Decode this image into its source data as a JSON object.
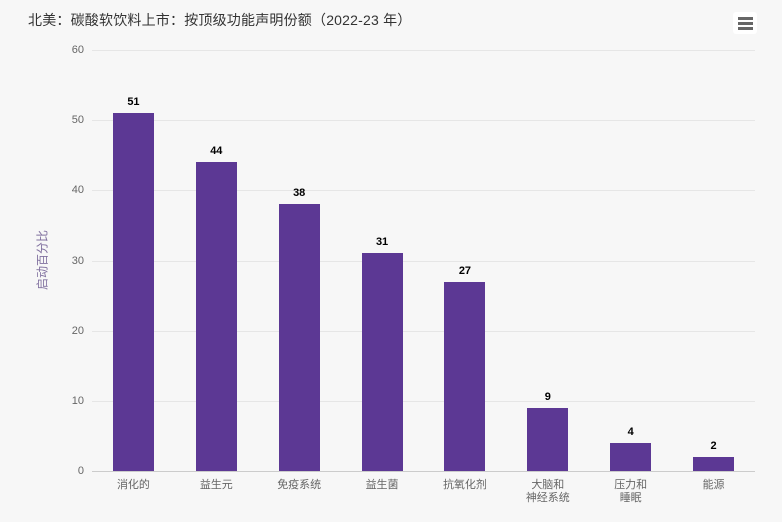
{
  "header": {
    "menu_button": "hamburger-icon"
  },
  "chart_data": {
    "type": "bar",
    "title": "北美：碳酸软饮料上市：按顶级功能声明份额（2022-23 年）",
    "categories": [
      "消化的",
      "益生元",
      "免疫系统",
      "益生菌",
      "抗氧化剂",
      "大脑和\n神经系统",
      "压力和\n睡眠",
      "能源"
    ],
    "values": [
      51,
      44,
      38,
      31,
      27,
      9,
      4,
      2
    ],
    "xlabel": "",
    "ylabel": "启动百分比",
    "ylim": [
      0,
      60
    ],
    "yticks": [
      0,
      10,
      20,
      30,
      40,
      50,
      60
    ],
    "grid": true,
    "legend": false,
    "data_labels": true,
    "colors": {
      "bar": "#5c3894",
      "background": "#f7f7f7",
      "gridline": "#e6e6e6",
      "axis_line": "#cccccc",
      "title_text": "#333333",
      "tick_text": "#666666",
      "axis_title_text": "#80709f",
      "data_label_text": "#000000",
      "menu_icon": "#666666"
    }
  }
}
